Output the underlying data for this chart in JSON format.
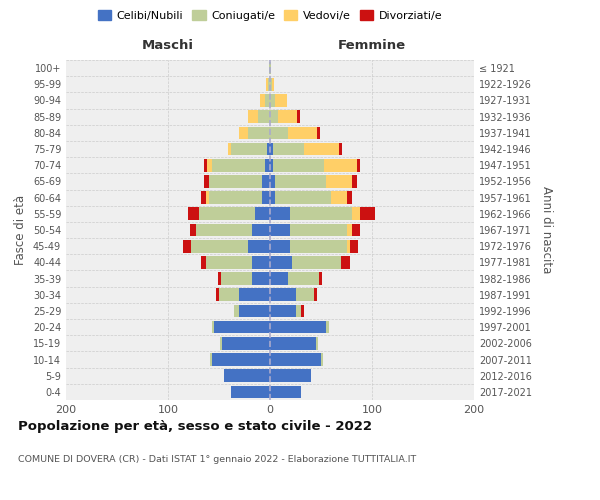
{
  "age_groups": [
    "0-4",
    "5-9",
    "10-14",
    "15-19",
    "20-24",
    "25-29",
    "30-34",
    "35-39",
    "40-44",
    "45-49",
    "50-54",
    "55-59",
    "60-64",
    "65-69",
    "70-74",
    "75-79",
    "80-84",
    "85-89",
    "90-94",
    "95-99",
    "100+"
  ],
  "birth_years": [
    "2017-2021",
    "2012-2016",
    "2007-2011",
    "2002-2006",
    "1997-2001",
    "1992-1996",
    "1987-1991",
    "1982-1986",
    "1977-1981",
    "1972-1976",
    "1967-1971",
    "1962-1966",
    "1957-1961",
    "1952-1956",
    "1947-1951",
    "1942-1946",
    "1937-1941",
    "1932-1936",
    "1927-1931",
    "1922-1926",
    "≤ 1921"
  ],
  "male": {
    "celibi": [
      38,
      45,
      57,
      47,
      55,
      30,
      30,
      18,
      18,
      22,
      18,
      15,
      8,
      8,
      5,
      3,
      0,
      0,
      0,
      0,
      0
    ],
    "coniugati": [
      0,
      0,
      2,
      2,
      2,
      5,
      20,
      30,
      45,
      55,
      55,
      55,
      52,
      52,
      52,
      35,
      22,
      12,
      5,
      2,
      1
    ],
    "vedovi": [
      0,
      0,
      0,
      0,
      0,
      0,
      0,
      0,
      0,
      0,
      0,
      0,
      3,
      0,
      5,
      3,
      8,
      10,
      5,
      2,
      0
    ],
    "divorziati": [
      0,
      0,
      0,
      0,
      0,
      0,
      3,
      3,
      5,
      8,
      5,
      10,
      5,
      5,
      3,
      0,
      0,
      0,
      0,
      0,
      0
    ]
  },
  "female": {
    "nubili": [
      30,
      40,
      50,
      45,
      55,
      25,
      25,
      18,
      22,
      20,
      20,
      20,
      5,
      5,
      3,
      3,
      0,
      0,
      0,
      0,
      0
    ],
    "coniugate": [
      0,
      0,
      2,
      2,
      3,
      5,
      18,
      30,
      48,
      55,
      55,
      60,
      55,
      50,
      50,
      30,
      18,
      8,
      5,
      2,
      1
    ],
    "vedove": [
      0,
      0,
      0,
      0,
      0,
      0,
      0,
      0,
      0,
      3,
      5,
      8,
      15,
      25,
      32,
      35,
      28,
      18,
      12,
      2,
      0
    ],
    "divorziate": [
      0,
      0,
      0,
      0,
      0,
      3,
      3,
      3,
      8,
      8,
      8,
      15,
      5,
      5,
      3,
      3,
      3,
      3,
      0,
      0,
      0
    ]
  },
  "colors": {
    "celibi": "#4472C4",
    "coniugati": "#BFCE99",
    "vedovi": "#FFCF67",
    "divorziati": "#CC1111"
  },
  "title": "Popolazione per età, sesso e stato civile - 2022",
  "subtitle": "COMUNE DI DOVERA (CR) - Dati ISTAT 1° gennaio 2022 - Elaborazione TUTTITALIA.IT",
  "ylabel_left": "Fasce di età",
  "ylabel_right": "Anni di nascita",
  "xlabel_left": "Maschi",
  "xlabel_right": "Femmine",
  "xlim": 200,
  "legend_labels": [
    "Celibi/Nubili",
    "Coniugati/e",
    "Vedovi/e",
    "Divorziati/e"
  ],
  "bg_color": "#FFFFFF",
  "plot_bg": "#EFEFEF",
  "grid_color": "#CCCCCC"
}
